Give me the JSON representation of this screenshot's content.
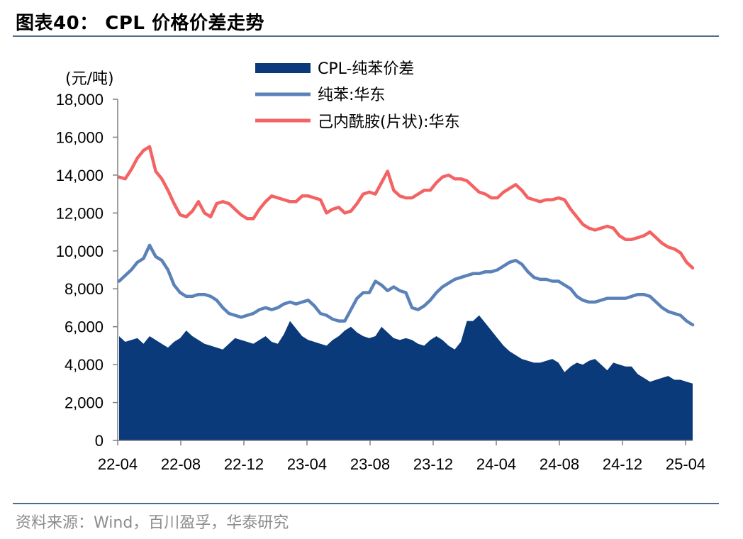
{
  "title": "图表40： CPL 价格价差走势",
  "source": "资料来源：Wind，百川盈孚，华泰研究",
  "colors": {
    "spread": "#0b3a7a",
    "benzene": "#5b82b8",
    "cpl": "#f46363",
    "rule": "#4a6d8c",
    "axis": "#7f7f7f"
  },
  "chart_data": {
    "type": "area+line",
    "unit_label": "(元/吨)",
    "ylim": [
      0,
      18000
    ],
    "yticks": [
      {
        "value": 0,
        "label": "0"
      },
      {
        "value": 2000,
        "label": "2,000"
      },
      {
        "value": 4000,
        "label": "4,000"
      },
      {
        "value": 6000,
        "label": "6,000"
      },
      {
        "value": 8000,
        "label": "8,000"
      },
      {
        "value": 10000,
        "label": "10,000"
      },
      {
        "value": 12000,
        "label": "12,000"
      },
      {
        "value": 14000,
        "label": "14,000"
      },
      {
        "value": 16000,
        "label": "16,000"
      },
      {
        "value": 18000,
        "label": "18,000"
      }
    ],
    "xticks": [
      "22-04",
      "22-08",
      "22-12",
      "23-04",
      "23-08",
      "23-12",
      "24-04",
      "24-08",
      "24-12",
      "25-04"
    ],
    "x_start": "22-04",
    "x_end": "25-04",
    "grid": false,
    "legend_position": "top-center",
    "series": [
      {
        "name": "CPL-纯苯价差",
        "type": "area",
        "values": [
          5500,
          5200,
          5300,
          5400,
          5100,
          5500,
          5300,
          5100,
          4900,
          5200,
          5400,
          5800,
          5500,
          5300,
          5100,
          5000,
          4900,
          4800,
          5100,
          5400,
          5300,
          5200,
          5100,
          5300,
          5500,
          5200,
          5100,
          5600,
          6300,
          5900,
          5500,
          5300,
          5200,
          5100,
          5000,
          5300,
          5500,
          5800,
          6000,
          5700,
          5500,
          5400,
          5500,
          6000,
          5700,
          5400,
          5300,
          5400,
          5300,
          5100,
          5000,
          5300,
          5500,
          5300,
          5000,
          4800,
          5200,
          6300,
          6300,
          6600,
          6200,
          5800,
          5400,
          5000,
          4700,
          4500,
          4300,
          4200,
          4100,
          4100,
          4200,
          4300,
          4100,
          3600,
          3900,
          4100,
          4000,
          4200,
          4300,
          4000,
          3700,
          4100,
          4000,
          3900,
          3900,
          3500,
          3300,
          3100,
          3200,
          3300,
          3400,
          3200,
          3200,
          3100,
          3000
        ]
      },
      {
        "name": "纯苯:华东",
        "type": "line",
        "values": [
          8400,
          8700,
          9000,
          9400,
          9600,
          10300,
          9700,
          9500,
          9000,
          8200,
          7800,
          7600,
          7600,
          7700,
          7700,
          7600,
          7400,
          7000,
          6700,
          6600,
          6500,
          6600,
          6700,
          6900,
          7000,
          6900,
          7000,
          7200,
          7300,
          7200,
          7300,
          7400,
          7100,
          6700,
          6600,
          6400,
          6300,
          6300,
          6900,
          7500,
          7800,
          7800,
          8400,
          8200,
          7900,
          8100,
          7900,
          7800,
          7000,
          6900,
          7100,
          7400,
          7800,
          8100,
          8300,
          8500,
          8600,
          8700,
          8800,
          8800,
          8900,
          8900,
          9000,
          9200,
          9400,
          9500,
          9300,
          8900,
          8600,
          8500,
          8500,
          8400,
          8400,
          8200,
          8000,
          7600,
          7400,
          7300,
          7300,
          7400,
          7500,
          7500,
          7500,
          7500,
          7600,
          7700,
          7700,
          7600,
          7300,
          7000,
          6800,
          6700,
          6600,
          6300,
          6100
        ]
      },
      {
        "name": "己内酰胺(片状):华东",
        "type": "line",
        "values": [
          13900,
          13800,
          14300,
          14900,
          15300,
          15500,
          14200,
          13800,
          13200,
          12500,
          11900,
          11800,
          12100,
          12600,
          12000,
          11800,
          12500,
          12600,
          12500,
          12200,
          11900,
          11700,
          11700,
          12200,
          12600,
          12900,
          12800,
          12700,
          12600,
          12600,
          12900,
          12900,
          12800,
          12700,
          12000,
          12200,
          12300,
          12000,
          12100,
          12500,
          13000,
          13100,
          13000,
          13600,
          14200,
          13200,
          12900,
          12800,
          12800,
          13000,
          13200,
          13200,
          13600,
          13900,
          14000,
          13800,
          13800,
          13700,
          13400,
          13100,
          13000,
          12800,
          12800,
          13100,
          13300,
          13500,
          13200,
          12800,
          12700,
          12600,
          12700,
          12700,
          12800,
          12700,
          12200,
          11800,
          11400,
          11200,
          11100,
          11200,
          11300,
          11200,
          10800,
          10600,
          10600,
          10700,
          10800,
          11000,
          10700,
          10400,
          10200,
          10100,
          9900,
          9400,
          9100
        ]
      }
    ]
  }
}
